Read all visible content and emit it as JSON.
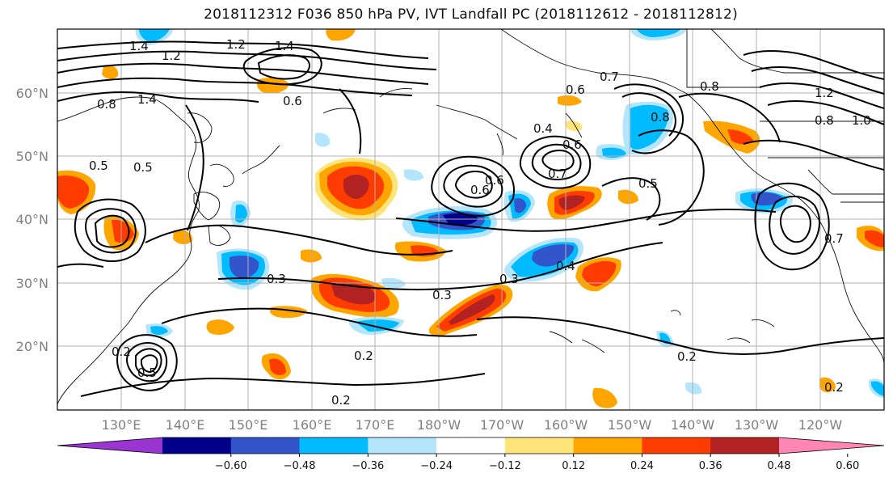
{
  "title": "2018112312 F036 850 hPa PV, IVT Landfall PC (2018112612 - 2018112812)",
  "lat_labels": [
    "60°N",
    "50°N",
    "40°N",
    "30°N",
    "20°N"
  ],
  "lon_labels": [
    "130°E",
    "140°E",
    "150°E",
    "160°E",
    "170°E",
    "180°W",
    "170°W",
    "160°W",
    "150°W",
    "140°W",
    "130°W",
    "120°W"
  ],
  "colorbar": {
    "ticks": [
      "−0.60",
      "−0.48",
      "−0.36",
      "−0.24",
      "−0.12",
      "0.12",
      "0.24",
      "0.36",
      "0.48",
      "0.60"
    ],
    "colors": [
      "#9a35d2",
      "#00008b",
      "#3355cc",
      "#00bbff",
      "#b3e5fc",
      "#ffffff",
      "#ffe47a",
      "#ffa500",
      "#ff3c00",
      "#b22222",
      "#ff85b3"
    ]
  },
  "contour_labels": [
    "1.4",
    "1.2",
    "1.4",
    "1.2",
    "0.8",
    "1.4",
    "0.6",
    "0.5",
    "0.5",
    "0.6",
    "0.7",
    "0.6",
    "0.8",
    "0.4",
    "0.6",
    "0.7",
    "0.8",
    "0.5",
    "0.6",
    "0.3",
    "0.3",
    "0.3",
    "0.4",
    "0.2",
    "0.2",
    "0.2",
    "0.2",
    "0.5",
    "0.2",
    "1.2",
    "1.0",
    "0.8",
    "0.7"
  ]
}
